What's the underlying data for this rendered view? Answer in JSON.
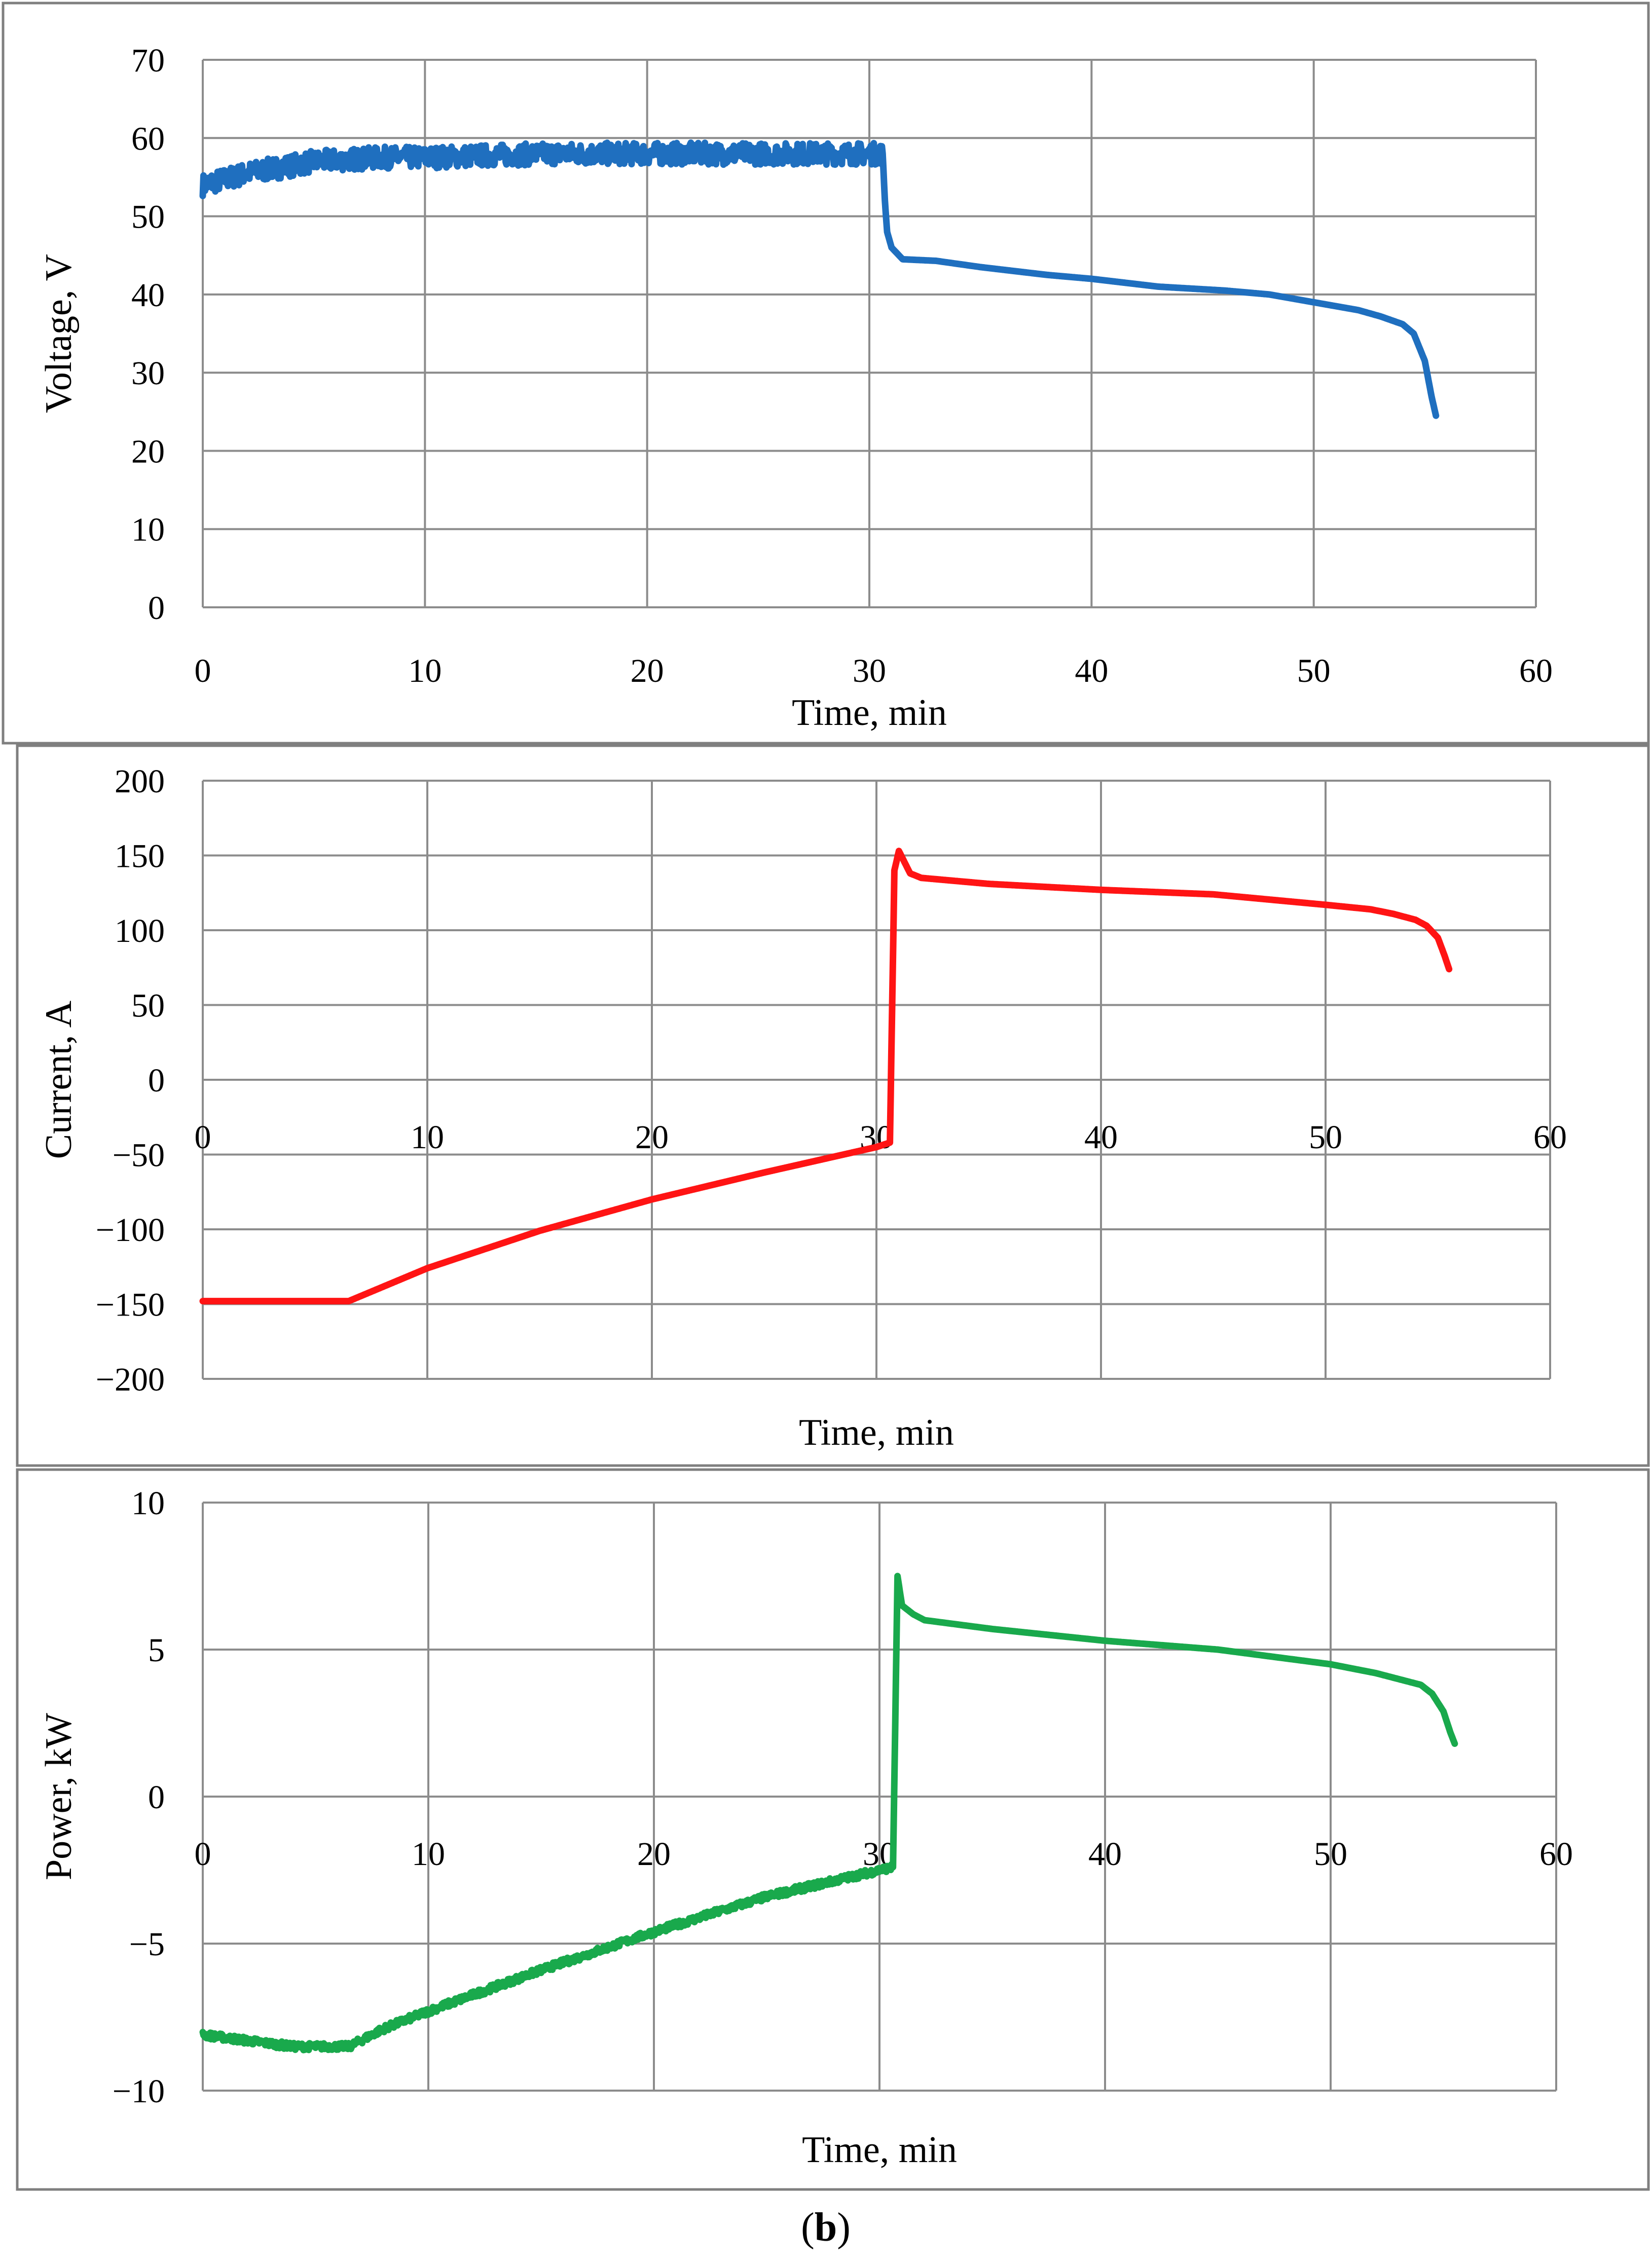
{
  "figure": {
    "caption_open": "(",
    "caption_letter": "b",
    "caption_close": ")"
  },
  "chart_data": [
    {
      "type": "line",
      "title": "",
      "xlabel": "Time, min",
      "ylabel": "Voltage, V",
      "xlim": [
        0,
        60
      ],
      "ylim": [
        0,
        70
      ],
      "xticks": [
        0,
        10,
        20,
        30,
        40,
        50,
        60
      ],
      "yticks": [
        0,
        10,
        20,
        30,
        40,
        50,
        60,
        70
      ],
      "grid": true,
      "color": "#1f6fbf",
      "series": [
        {
          "name": "Voltage",
          "x": [
            0,
            2,
            5,
            8,
            10,
            13,
            16,
            20,
            24,
            27,
            30,
            30.6,
            30.7,
            30.8,
            31,
            31.5,
            33,
            35,
            38,
            40,
            43,
            46,
            48,
            50,
            52,
            53,
            54,
            54.5,
            55,
            55.3,
            55.5
          ],
          "y": [
            54,
            55.5,
            57,
            57.5,
            57.5,
            57.8,
            58,
            58,
            58,
            58,
            58,
            58,
            52,
            48,
            46,
            44.5,
            44.3,
            43.5,
            42.5,
            42,
            41,
            40.5,
            40,
            39,
            38,
            37.2,
            36.2,
            35,
            31.5,
            27,
            24.5
          ],
          "noise_until_x": 30.6,
          "noise_amplitude": 1.4
        }
      ]
    },
    {
      "type": "line",
      "title": "",
      "xlabel": "Time, min",
      "ylabel": "Current, A",
      "xlim": [
        0,
        60
      ],
      "ylim": [
        -200,
        200
      ],
      "xticks": [
        0,
        10,
        20,
        30,
        40,
        50,
        60
      ],
      "yticks": [
        -200,
        -150,
        -100,
        -50,
        0,
        50,
        100,
        150,
        200
      ],
      "ytick_labels": [
        "−200",
        "−150",
        "−100",
        "−50",
        "0",
        "50",
        "100",
        "150",
        "200"
      ],
      "xtick_position": "at y = 0",
      "grid": true,
      "color": "#ff1414",
      "series": [
        {
          "name": "Current",
          "x": [
            0,
            3,
            6.5,
            10,
            15,
            20,
            25,
            30,
            30.6,
            30.8,
            31,
            31.5,
            32,
            35,
            40,
            45,
            50,
            52,
            53,
            54,
            54.5,
            55,
            55.3,
            55.5
          ],
          "y": [
            -148,
            -148,
            -148,
            -126,
            -101,
            -80,
            -62,
            -45,
            -42,
            140,
            153,
            138,
            135,
            131,
            127,
            124,
            117,
            114,
            111,
            107,
            103,
            95,
            83,
            74
          ],
          "noise_until_x": 0,
          "noise_amplitude": 0
        }
      ]
    },
    {
      "type": "line",
      "title": "",
      "xlabel": "Time, min",
      "ylabel": "Power, kW",
      "xlim": [
        0,
        60
      ],
      "ylim": [
        -10,
        10
      ],
      "xticks": [
        0,
        10,
        20,
        30,
        40,
        50,
        60
      ],
      "yticks": [
        -10,
        -5,
        0,
        5,
        10
      ],
      "ytick_labels": [
        "−10",
        "−5",
        "0",
        "5",
        "10"
      ],
      "xtick_position": "at y = 0",
      "grid": true,
      "color": "#19a94c",
      "series": [
        {
          "name": "Power",
          "x": [
            0,
            2,
            4,
            6.5,
            8,
            10,
            15,
            20,
            25,
            30,
            30.6,
            30.8,
            31,
            31.5,
            32,
            35,
            40,
            45,
            50,
            52,
            53,
            54,
            54.5,
            55,
            55.3,
            55.5
          ],
          "y": [
            -8.1,
            -8.3,
            -8.5,
            -8.5,
            -7.9,
            -7.3,
            -5.9,
            -4.6,
            -3.4,
            -2.5,
            -2.4,
            7.5,
            6.5,
            6.2,
            6.0,
            5.7,
            5.3,
            5.0,
            4.5,
            4.2,
            4.0,
            3.8,
            3.5,
            2.9,
            2.2,
            1.8
          ],
          "noise_until_x": 30.6,
          "noise_amplitude": 0.12
        }
      ]
    }
  ]
}
